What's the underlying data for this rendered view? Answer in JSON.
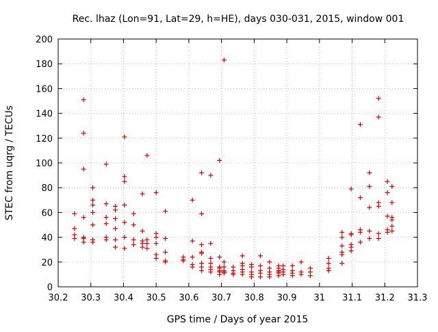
{
  "chart_data": {
    "type": "scatter",
    "title": "Rec. lhaz (Lon=91, Lat=29, h=HE), days 030-031, 2015, window 001",
    "xlabel": "GPS time / Days of year 2015",
    "ylabel": "STEC from uqrg / TECUs",
    "xlim": [
      30.2,
      31.3
    ],
    "ylim": [
      0,
      200
    ],
    "xticks": [
      30.2,
      30.3,
      30.4,
      30.5,
      30.6,
      30.7,
      30.8,
      30.9,
      31,
      31.1,
      31.2,
      31.3
    ],
    "xtick_labels": [
      "30.2",
      "30.3",
      "30.4",
      "30.5",
      "30.6",
      "30.7",
      "30.8",
      "30.9",
      "31",
      "31.1",
      "31.2",
      "31.3"
    ],
    "yticks": [
      0,
      20,
      40,
      60,
      80,
      100,
      120,
      140,
      160,
      180,
      200
    ],
    "ytick_labels": [
      "0",
      "20",
      "40",
      "60",
      "80",
      "100",
      "120",
      "140",
      "160",
      "180",
      "200"
    ],
    "grid": true,
    "marker": "+",
    "color": "#d40000",
    "points": [
      [
        30.25,
        59
      ],
      [
        30.25,
        47
      ],
      [
        30.25,
        42
      ],
      [
        30.25,
        39
      ],
      [
        30.278,
        151
      ],
      [
        30.278,
        124
      ],
      [
        30.278,
        95
      ],
      [
        30.278,
        56
      ],
      [
        30.278,
        40
      ],
      [
        30.278,
        39
      ],
      [
        30.278,
        36
      ],
      [
        30.306,
        80
      ],
      [
        30.306,
        70
      ],
      [
        30.306,
        66
      ],
      [
        30.306,
        60
      ],
      [
        30.306,
        50
      ],
      [
        30.306,
        38
      ],
      [
        30.306,
        36
      ],
      [
        30.347,
        99
      ],
      [
        30.347,
        67
      ],
      [
        30.347,
        56
      ],
      [
        30.347,
        51
      ],
      [
        30.347,
        40
      ],
      [
        30.347,
        38
      ],
      [
        30.375,
        65
      ],
      [
        30.375,
        62
      ],
      [
        30.375,
        55
      ],
      [
        30.375,
        47
      ],
      [
        30.375,
        38
      ],
      [
        30.375,
        32
      ],
      [
        30.403,
        121
      ],
      [
        30.403,
        89
      ],
      [
        30.403,
        85
      ],
      [
        30.403,
        66
      ],
      [
        30.403,
        52
      ],
      [
        30.403,
        40
      ],
      [
        30.403,
        31
      ],
      [
        30.431,
        59
      ],
      [
        30.431,
        50
      ],
      [
        30.431,
        38
      ],
      [
        30.431,
        34
      ],
      [
        30.458,
        75
      ],
      [
        30.458,
        45
      ],
      [
        30.458,
        37
      ],
      [
        30.458,
        35
      ],
      [
        30.458,
        32
      ],
      [
        30.472,
        106
      ],
      [
        30.472,
        38
      ],
      [
        30.472,
        35
      ],
      [
        30.472,
        31
      ],
      [
        30.5,
        76
      ],
      [
        30.5,
        43
      ],
      [
        30.5,
        40
      ],
      [
        30.5,
        35
      ],
      [
        30.5,
        26
      ],
      [
        30.5,
        23
      ],
      [
        30.528,
        61
      ],
      [
        30.528,
        39
      ],
      [
        30.528,
        28
      ],
      [
        30.528,
        21
      ],
      [
        30.528,
        20
      ],
      [
        30.583,
        24
      ],
      [
        30.583,
        22
      ],
      [
        30.583,
        21
      ],
      [
        30.611,
        70
      ],
      [
        30.611,
        37
      ],
      [
        30.611,
        24
      ],
      [
        30.611,
        18
      ],
      [
        30.611,
        16
      ],
      [
        30.639,
        92
      ],
      [
        30.639,
        59
      ],
      [
        30.639,
        34
      ],
      [
        30.639,
        28
      ],
      [
        30.639,
        27
      ],
      [
        30.639,
        19
      ],
      [
        30.639,
        16
      ],
      [
        30.639,
        13
      ],
      [
        30.667,
        90
      ],
      [
        30.667,
        35
      ],
      [
        30.667,
        23
      ],
      [
        30.667,
        19
      ],
      [
        30.667,
        16
      ],
      [
        30.667,
        14
      ],
      [
        30.667,
        12
      ],
      [
        30.694,
        102
      ],
      [
        30.694,
        24
      ],
      [
        30.694,
        16
      ],
      [
        30.694,
        15
      ],
      [
        30.694,
        13
      ],
      [
        30.694,
        12
      ],
      [
        30.694,
        10
      ],
      [
        30.708,
        183
      ],
      [
        30.708,
        20
      ],
      [
        30.708,
        16
      ],
      [
        30.708,
        13
      ],
      [
        30.708,
        12
      ],
      [
        30.708,
        11
      ],
      [
        30.736,
        16
      ],
      [
        30.736,
        13
      ],
      [
        30.736,
        11
      ],
      [
        30.736,
        10
      ],
      [
        30.764,
        25
      ],
      [
        30.764,
        19
      ],
      [
        30.764,
        17
      ],
      [
        30.764,
        14
      ],
      [
        30.764,
        12
      ],
      [
        30.764,
        10
      ],
      [
        30.792,
        18
      ],
      [
        30.792,
        16
      ],
      [
        30.792,
        12
      ],
      [
        30.792,
        10
      ],
      [
        30.792,
        8
      ],
      [
        30.819,
        25
      ],
      [
        30.819,
        17
      ],
      [
        30.819,
        13
      ],
      [
        30.819,
        11
      ],
      [
        30.819,
        8
      ],
      [
        30.847,
        20
      ],
      [
        30.847,
        15
      ],
      [
        30.847,
        12
      ],
      [
        30.847,
        10
      ],
      [
        30.847,
        8
      ],
      [
        30.875,
        17
      ],
      [
        30.875,
        15
      ],
      [
        30.875,
        13
      ],
      [
        30.875,
        12
      ],
      [
        30.875,
        11
      ],
      [
        30.875,
        9
      ],
      [
        30.889,
        17
      ],
      [
        30.889,
        14
      ],
      [
        30.889,
        12
      ],
      [
        30.889,
        10
      ],
      [
        30.917,
        17
      ],
      [
        30.917,
        13
      ],
      [
        30.917,
        11
      ],
      [
        30.917,
        9
      ],
      [
        30.944,
        20
      ],
      [
        30.944,
        12
      ],
      [
        30.944,
        10
      ],
      [
        30.972,
        15
      ],
      [
        30.972,
        12
      ],
      [
        30.972,
        9
      ],
      [
        31.028,
        23
      ],
      [
        31.028,
        19
      ],
      [
        31.028,
        15
      ],
      [
        31.028,
        13
      ],
      [
        31.069,
        44
      ],
      [
        31.069,
        40
      ],
      [
        31.069,
        33
      ],
      [
        31.069,
        28
      ],
      [
        31.069,
        26
      ],
      [
        31.069,
        19
      ],
      [
        31.097,
        79
      ],
      [
        31.097,
        43
      ],
      [
        31.097,
        42
      ],
      [
        31.097,
        34
      ],
      [
        31.097,
        32
      ],
      [
        31.097,
        29
      ],
      [
        31.125,
        131
      ],
      [
        31.125,
        72
      ],
      [
        31.125,
        46
      ],
      [
        31.125,
        44
      ],
      [
        31.125,
        36
      ],
      [
        31.153,
        92
      ],
      [
        31.153,
        81
      ],
      [
        31.153,
        64
      ],
      [
        31.153,
        45
      ],
      [
        31.153,
        39
      ],
      [
        31.181,
        152
      ],
      [
        31.181,
        137
      ],
      [
        31.181,
        68
      ],
      [
        31.181,
        65
      ],
      [
        31.181,
        43
      ],
      [
        31.181,
        39
      ],
      [
        31.208,
        85
      ],
      [
        31.208,
        76
      ],
      [
        31.208,
        57
      ],
      [
        31.208,
        46
      ],
      [
        31.208,
        44
      ],
      [
        31.222,
        81
      ],
      [
        31.222,
        68
      ],
      [
        31.222,
        56
      ],
      [
        31.222,
        54
      ],
      [
        31.222,
        49
      ],
      [
        31.222,
        45
      ]
    ]
  }
}
